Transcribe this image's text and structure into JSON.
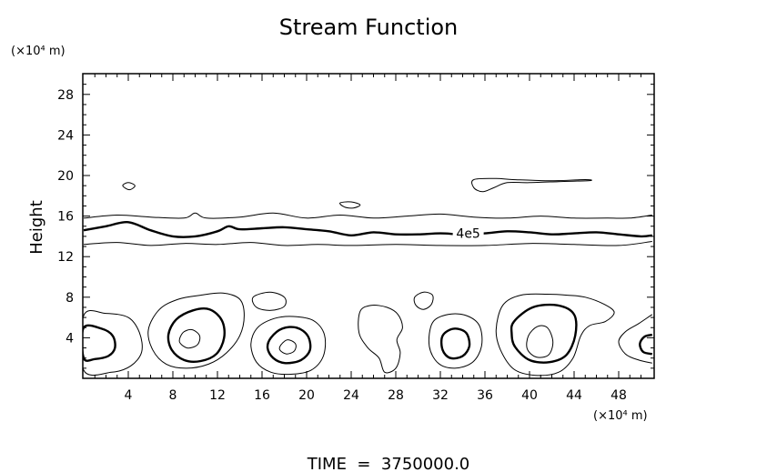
{
  "chart_data": {
    "type": "contour",
    "title": "Stream Function",
    "xlabel": "",
    "ylabel": "Height",
    "x_unit": "(×10⁴ m)",
    "y_unit": "(×10⁴ m)",
    "xlim": [
      0,
      51
    ],
    "ylim": [
      0,
      30
    ],
    "xticks": [
      4,
      8,
      12,
      16,
      20,
      24,
      28,
      32,
      36,
      40,
      44,
      48
    ],
    "yticks": [
      4,
      8,
      12,
      16,
      20,
      24,
      28
    ],
    "grid": false,
    "contour_labels": [
      {
        "text": "4e5",
        "x": 34.5,
        "y": 14.3
      }
    ],
    "footer": "TIME  =  3750000.0",
    "contours": [
      {
        "id": "band-upper",
        "weight": "thin",
        "closed": false,
        "points": [
          [
            0,
            15.8
          ],
          [
            3,
            16.1
          ],
          [
            6,
            15.9
          ],
          [
            9,
            15.8
          ],
          [
            10,
            16.3
          ],
          [
            11,
            15.8
          ],
          [
            14,
            15.9
          ],
          [
            17,
            16.3
          ],
          [
            20,
            15.8
          ],
          [
            23,
            16.1
          ],
          [
            26,
            15.8
          ],
          [
            29,
            16.0
          ],
          [
            32,
            16.2
          ],
          [
            35,
            15.9
          ],
          [
            38,
            15.8
          ],
          [
            41,
            16.0
          ],
          [
            44,
            15.8
          ],
          [
            47,
            15.8
          ],
          [
            49,
            15.8
          ],
          [
            51,
            16.1
          ]
        ]
      },
      {
        "id": "band-4e5",
        "weight": "thick",
        "closed": false,
        "points": [
          [
            0,
            14.6
          ],
          [
            2,
            15.0
          ],
          [
            4,
            15.4
          ],
          [
            6,
            14.6
          ],
          [
            8,
            14.0
          ],
          [
            10,
            14.0
          ],
          [
            12,
            14.5
          ],
          [
            13,
            15.0
          ],
          [
            14,
            14.7
          ],
          [
            16,
            14.8
          ],
          [
            18,
            14.9
          ],
          [
            20,
            14.7
          ],
          [
            22,
            14.5
          ],
          [
            24,
            14.1
          ],
          [
            26,
            14.4
          ],
          [
            28,
            14.2
          ],
          [
            30,
            14.2
          ],
          [
            32,
            14.3
          ],
          [
            34,
            14.2
          ],
          [
            36,
            14.3
          ],
          [
            38,
            14.5
          ],
          [
            40,
            14.4
          ],
          [
            42,
            14.2
          ],
          [
            44,
            14.3
          ],
          [
            46,
            14.4
          ],
          [
            48,
            14.2
          ],
          [
            50,
            14.0
          ],
          [
            51,
            14.1
          ]
        ]
      },
      {
        "id": "band-lower",
        "weight": "thin",
        "closed": false,
        "points": [
          [
            0,
            13.2
          ],
          [
            3,
            13.4
          ],
          [
            6,
            13.1
          ],
          [
            9,
            13.3
          ],
          [
            12,
            13.2
          ],
          [
            15,
            13.4
          ],
          [
            18,
            13.1
          ],
          [
            21,
            13.2
          ],
          [
            24,
            13.1
          ],
          [
            28,
            13.2
          ],
          [
            32,
            13.1
          ],
          [
            36,
            13.1
          ],
          [
            40,
            13.3
          ],
          [
            44,
            13.2
          ],
          [
            48,
            13.1
          ],
          [
            51,
            13.5
          ]
        ]
      },
      {
        "id": "c-a1",
        "weight": "thin",
        "closed": true,
        "points": [
          [
            0,
            6.2
          ],
          [
            2,
            6.4
          ],
          [
            4,
            6.0
          ],
          [
            5,
            4.5
          ],
          [
            5.2,
            2.6
          ],
          [
            4.2,
            1.2
          ],
          [
            2.5,
            0.6
          ],
          [
            0,
            0.8
          ]
        ]
      },
      {
        "id": "c-a2",
        "weight": "thick",
        "closed": true,
        "points": [
          [
            0,
            5.0
          ],
          [
            1.6,
            4.9
          ],
          [
            2.6,
            4.2
          ],
          [
            2.8,
            3.0
          ],
          [
            2.2,
            2.2
          ],
          [
            1.0,
            1.9
          ],
          [
            0,
            2.0
          ]
        ]
      },
      {
        "id": "c-b1",
        "weight": "thin",
        "closed": true,
        "points": [
          [
            6.8,
            6.8
          ],
          [
            8.5,
            7.8
          ],
          [
            10.5,
            8.2
          ],
          [
            12.5,
            8.4
          ],
          [
            14,
            7.8
          ],
          [
            14.4,
            6.2
          ],
          [
            14.0,
            4.2
          ],
          [
            12.8,
            2.5
          ],
          [
            11.2,
            1.4
          ],
          [
            9.2,
            1.0
          ],
          [
            7.4,
            1.4
          ],
          [
            6.2,
            2.8
          ],
          [
            5.8,
            4.8
          ]
        ]
      },
      {
        "id": "c-b2",
        "weight": "thick",
        "closed": true,
        "points": [
          [
            8.3,
            5.8
          ],
          [
            9.8,
            6.7
          ],
          [
            11.3,
            6.8
          ],
          [
            12.4,
            5.7
          ],
          [
            12.6,
            4.0
          ],
          [
            11.9,
            2.4
          ],
          [
            10.5,
            1.7
          ],
          [
            9.0,
            1.8
          ],
          [
            7.9,
            2.8
          ],
          [
            7.6,
            4.3
          ]
        ]
      },
      {
        "id": "c-b3",
        "weight": "thin",
        "closed": true,
        "points": [
          [
            8.9,
            4.5
          ],
          [
            9.7,
            4.8
          ],
          [
            10.4,
            4.2
          ],
          [
            10.2,
            3.3
          ],
          [
            9.3,
            3.0
          ],
          [
            8.6,
            3.6
          ]
        ]
      },
      {
        "id": "c-c0",
        "weight": "thin",
        "closed": true,
        "points": [
          [
            15.2,
            8.0
          ],
          [
            16.7,
            8.5
          ],
          [
            18.0,
            8.0
          ],
          [
            18.0,
            7.1
          ],
          [
            16.8,
            6.7
          ],
          [
            15.5,
            7.0
          ]
        ]
      },
      {
        "id": "c-c1",
        "weight": "thin",
        "closed": true,
        "points": [
          [
            15.6,
            5.0
          ],
          [
            17.1,
            5.9
          ],
          [
            18.8,
            6.1
          ],
          [
            20.6,
            5.7
          ],
          [
            21.6,
            4.3
          ],
          [
            21.5,
            2.2
          ],
          [
            20.4,
            0.8
          ],
          [
            18.6,
            0.4
          ],
          [
            16.8,
            0.6
          ],
          [
            15.5,
            1.6
          ],
          [
            15.0,
            3.4
          ]
        ]
      },
      {
        "id": "c-c2",
        "weight": "thick",
        "closed": true,
        "points": [
          [
            16.8,
            4.0
          ],
          [
            17.8,
            4.9
          ],
          [
            19.1,
            5.0
          ],
          [
            20.1,
            4.2
          ],
          [
            20.3,
            2.8
          ],
          [
            19.5,
            1.8
          ],
          [
            18.1,
            1.5
          ],
          [
            17.0,
            2.0
          ],
          [
            16.5,
            3.0
          ]
        ]
      },
      {
        "id": "c-c3",
        "weight": "thin",
        "closed": true,
        "points": [
          [
            17.7,
            3.3
          ],
          [
            18.3,
            3.8
          ],
          [
            19.0,
            3.4
          ],
          [
            18.9,
            2.7
          ],
          [
            18.2,
            2.4
          ],
          [
            17.6,
            2.8
          ]
        ]
      },
      {
        "id": "c-d1",
        "weight": "thin",
        "closed": true,
        "points": [
          [
            24.8,
            6.6
          ],
          [
            25.8,
            7.2
          ],
          [
            27.2,
            7.0
          ],
          [
            28.2,
            6.3
          ],
          [
            28.6,
            5.0
          ],
          [
            28.1,
            3.8
          ],
          [
            28.4,
            2.5
          ],
          [
            28.0,
            1.0
          ],
          [
            27.0,
            0.6
          ],
          [
            26.5,
            2.0
          ],
          [
            25.5,
            3.0
          ],
          [
            24.7,
            4.5
          ]
        ]
      },
      {
        "id": "c-e0",
        "weight": "thin",
        "closed": true,
        "points": [
          [
            29.7,
            8.0
          ],
          [
            30.5,
            8.5
          ],
          [
            31.3,
            8.2
          ],
          [
            31.2,
            7.3
          ],
          [
            30.5,
            6.8
          ],
          [
            29.8,
            7.2
          ]
        ]
      },
      {
        "id": "c-e1",
        "weight": "thin",
        "closed": true,
        "points": [
          [
            31.3,
            5.5
          ],
          [
            32.7,
            6.3
          ],
          [
            34.3,
            6.2
          ],
          [
            35.5,
            5.2
          ],
          [
            35.7,
            3.2
          ],
          [
            34.9,
            1.6
          ],
          [
            33.3,
            1.0
          ],
          [
            31.8,
            1.5
          ],
          [
            31.0,
            3.2
          ]
        ]
      },
      {
        "id": "c-e2",
        "weight": "thick",
        "closed": true,
        "points": [
          [
            32.2,
            4.2
          ],
          [
            33.2,
            4.9
          ],
          [
            34.3,
            4.5
          ],
          [
            34.6,
            3.2
          ],
          [
            34.0,
            2.2
          ],
          [
            32.9,
            2.0
          ],
          [
            32.2,
            2.8
          ]
        ]
      },
      {
        "id": "c-f1",
        "weight": "thin",
        "closed": true,
        "points": [
          [
            37.6,
            7.2
          ],
          [
            39.2,
            8.2
          ],
          [
            41.6,
            8.3
          ],
          [
            43.4,
            8.2
          ],
          [
            45.0,
            8.0
          ],
          [
            46.7,
            7.3
          ],
          [
            47.6,
            6.5
          ],
          [
            46.8,
            5.6
          ],
          [
            45.4,
            5.2
          ],
          [
            44.6,
            4.2
          ],
          [
            43.9,
            2.0
          ],
          [
            42.6,
            0.6
          ],
          [
            40.5,
            0.3
          ],
          [
            38.6,
            0.9
          ],
          [
            37.4,
            2.8
          ],
          [
            37.0,
            4.8
          ]
        ]
      },
      {
        "id": "c-f2",
        "weight": "thick",
        "closed": true,
        "points": [
          [
            38.6,
            5.6
          ],
          [
            40.3,
            7.0
          ],
          [
            42.5,
            7.2
          ],
          [
            44.0,
            6.3
          ],
          [
            44.1,
            4.2
          ],
          [
            43.3,
            2.3
          ],
          [
            41.8,
            1.6
          ],
          [
            40.0,
            1.8
          ],
          [
            38.7,
            3.1
          ],
          [
            38.4,
            4.4
          ]
        ]
      },
      {
        "id": "c-f3",
        "weight": "thin",
        "closed": true,
        "points": [
          [
            39.9,
            4.2
          ],
          [
            40.7,
            5.1
          ],
          [
            41.6,
            5.0
          ],
          [
            42.1,
            3.6
          ],
          [
            41.7,
            2.3
          ],
          [
            40.6,
            2.1
          ],
          [
            39.8,
            2.9
          ]
        ]
      },
      {
        "id": "c-g1",
        "weight": "thin",
        "closed": false,
        "points": [
          [
            51,
            6.3
          ],
          [
            49.8,
            5.4
          ],
          [
            48.6,
            4.6
          ],
          [
            48.0,
            3.6
          ],
          [
            48.6,
            2.4
          ],
          [
            49.8,
            1.8
          ],
          [
            51,
            1.5
          ]
        ]
      },
      {
        "id": "c-g2",
        "weight": "thick",
        "closed": false,
        "points": [
          [
            51,
            4.3
          ],
          [
            50.3,
            4.1
          ],
          [
            49.9,
            3.4
          ],
          [
            50.2,
            2.6
          ],
          [
            51,
            2.4
          ]
        ]
      },
      {
        "id": "s-1",
        "weight": "thin",
        "closed": true,
        "points": [
          [
            3.5,
            19.0
          ],
          [
            4.0,
            19.3
          ],
          [
            4.6,
            19.0
          ],
          [
            4.1,
            18.6
          ]
        ]
      },
      {
        "id": "s-2",
        "weight": "thin",
        "closed": true,
        "points": [
          [
            23.0,
            17.3
          ],
          [
            24.0,
            17.4
          ],
          [
            24.8,
            17.1
          ],
          [
            24.2,
            16.8
          ],
          [
            23.4,
            16.9
          ]
        ]
      },
      {
        "id": "s-3",
        "weight": "thin",
        "closed": true,
        "points": [
          [
            35.0,
            19.6
          ],
          [
            37.0,
            19.7
          ],
          [
            38.5,
            19.6
          ],
          [
            41.0,
            19.5
          ],
          [
            42.6,
            19.5
          ],
          [
            45.0,
            19.6
          ],
          [
            45.4,
            19.5
          ],
          [
            42.6,
            19.4
          ],
          [
            40.0,
            19.3
          ],
          [
            38.0,
            19.3
          ],
          [
            36.8,
            18.8
          ],
          [
            35.8,
            18.4
          ],
          [
            35.0,
            18.8
          ]
        ]
      }
    ]
  }
}
